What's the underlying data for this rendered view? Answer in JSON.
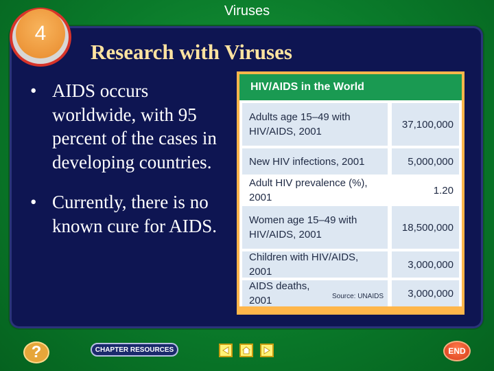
{
  "header": {
    "title": "Viruses"
  },
  "section": {
    "number": "4"
  },
  "slide": {
    "heading": "Research with Viruses",
    "bullets": [
      "AIDS occurs worldwide, with 95 percent of the cases in developing countries.",
      "Currently, there is no known cure for AIDS."
    ],
    "bullet_glyph": "•"
  },
  "table": {
    "title": "HIV/AIDS in the World",
    "rows": [
      {
        "label": "Adults age 15–49 with HIV/AIDS, 2001",
        "value": "37,100,000"
      },
      {
        "label": "New HIV infections, 2001",
        "value": "5,000,000"
      },
      {
        "label": "Adult HIV prevalence (%), 2001",
        "value": "1.20"
      },
      {
        "label": "Women age 15–49 with HIV/AIDS, 2001",
        "value": "18,500,000"
      },
      {
        "label": "Children with HIV/AIDS, 2001",
        "value": "3,000,000"
      },
      {
        "label": "AIDS deaths, 2001",
        "value": "3,000,000"
      }
    ],
    "source": "Source: UNAIDS"
  },
  "footer": {
    "help_label": "?",
    "chapter_resources_label": "CHAPTER RESOURCES",
    "end_label": "END",
    "icons": {
      "help": "question-icon",
      "prev": "arrow-left-icon",
      "home": "home-icon",
      "next": "arrow-right-icon"
    }
  },
  "colors": {
    "background": "#0a7a2a",
    "panel": "#0e1552",
    "heading": "#ffe3a0",
    "table_header": "#1a9a52",
    "table_border": "#ffb64a",
    "row_shade": "#dde7f2"
  }
}
